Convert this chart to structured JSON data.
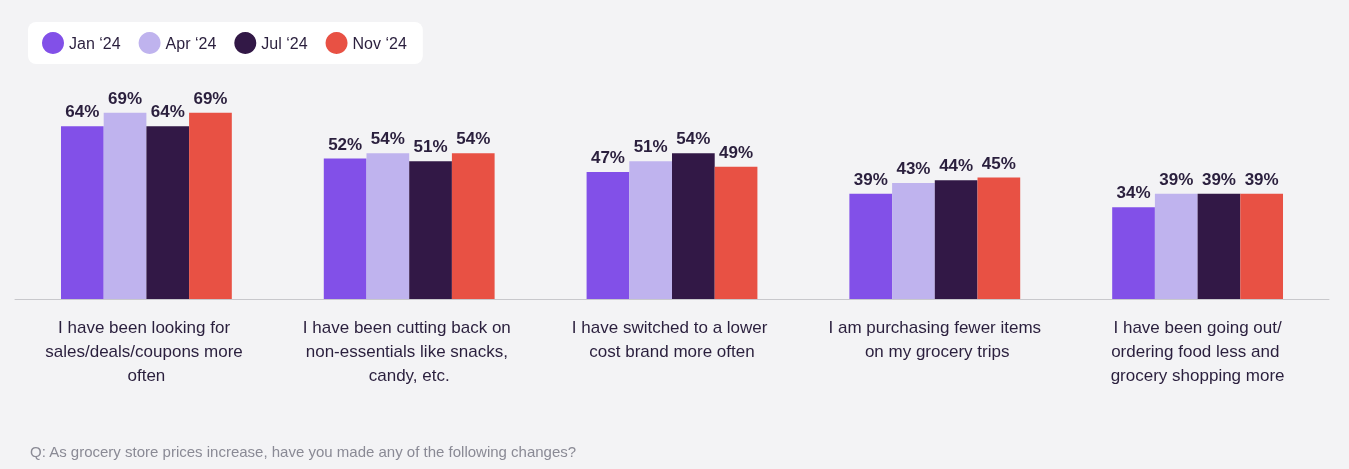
{
  "chart_data": {
    "type": "bar",
    "categories": [
      "I have been looking for sales/deals/coupons more often",
      "I have been cutting back on non-essentials like snacks, candy, etc.",
      "I have switched to a lower cost brand more often",
      "I am purchasing fewer items on my grocery trips",
      "I have been going out/ordering food less and grocery shopping more"
    ],
    "series": [
      {
        "name": "Jan ‘24",
        "color": "#8250e8",
        "values": [
          64,
          52,
          47,
          39,
          34
        ],
        "value_labels": [
          "64%",
          "52%",
          "47%",
          "39%",
          "34%"
        ]
      },
      {
        "name": "Apr ‘24",
        "color": "#bfb3ee",
        "values": [
          69,
          54,
          51,
          43,
          39
        ],
        "value_labels": [
          "69%",
          "54%",
          "51%",
          "43%",
          "39%"
        ]
      },
      {
        "name": "Jul ‘24",
        "color": "#321846",
        "values": [
          64,
          51,
          54,
          44,
          39
        ],
        "value_labels": [
          "64%",
          "51%",
          "54%",
          "44%",
          "39%"
        ]
      },
      {
        "name": "Nov ‘24",
        "color": "#e85144",
        "values": [
          69,
          54,
          49,
          45,
          39
        ],
        "value_labels": [
          "69%",
          "54%",
          "49%",
          "45%",
          "39%"
        ]
      }
    ],
    "legend": "top left",
    "annotations": [
      "Q: As grocery store prices increase, have you made any of the following changes?"
    ]
  }
}
